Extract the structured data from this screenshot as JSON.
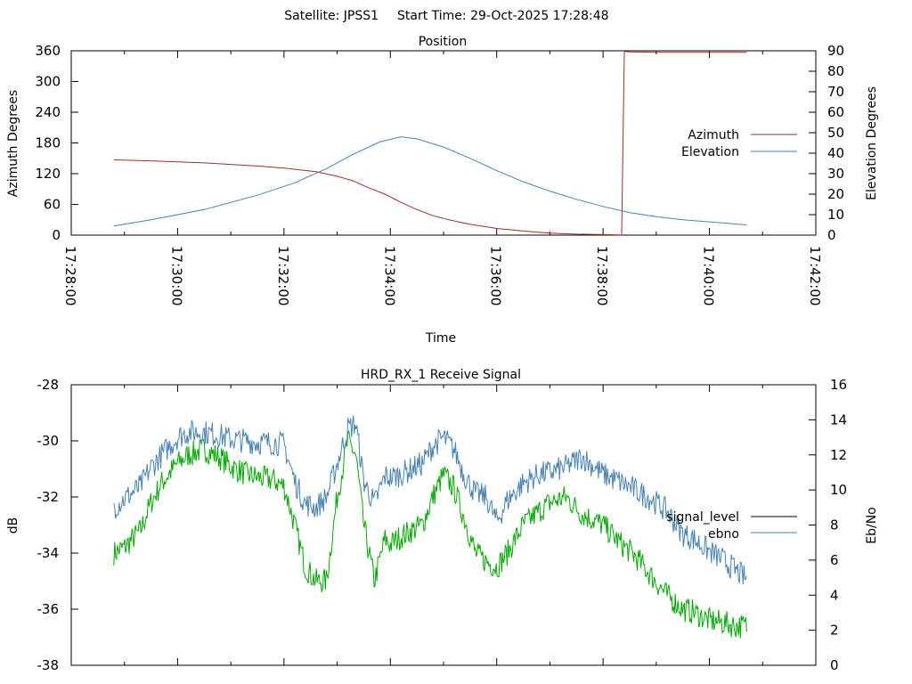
{
  "header": {
    "satellite": "Satellite: JPSS1",
    "start_time": "Start Time: 29-Oct-2025 17:28:48"
  },
  "chart_data": [
    {
      "type": "line",
      "title": "Position",
      "xlabel": "Time",
      "ylabel": "Azimuth Degrees",
      "y2label": "Elevation Degrees",
      "xlim_minutes": [
        0,
        14
      ],
      "ylim": [
        0,
        360
      ],
      "y2lim": [
        0,
        90
      ],
      "x_ticks": [
        "17:28:00",
        "17:30:00",
        "17:32:00",
        "17:34:00",
        "17:36:00",
        "17:38:00",
        "17:40:00",
        "17:42:00"
      ],
      "y_ticks": [
        "0",
        "60",
        "120",
        "180",
        "240",
        "300",
        "360"
      ],
      "y2_ticks": [
        "0",
        "10",
        "20",
        "30",
        "40",
        "50",
        "60",
        "70",
        "80",
        "90"
      ],
      "legend": [
        "Azimuth",
        "Elevation"
      ],
      "series": [
        {
          "name": "Azimuth",
          "axis": "left",
          "color": "#a52a2a",
          "x": [
            0.8,
            1.5,
            2.5,
            3.5,
            4.0,
            4.6,
            5.0,
            5.3,
            5.6,
            5.9,
            6.2,
            6.5,
            6.8,
            7.1,
            7.5,
            8.0,
            8.5,
            9.0,
            9.5,
            10.0,
            10.3,
            10.35,
            10.4,
            10.5,
            11.0,
            11.5,
            12.0,
            12.7
          ],
          "y": [
            147,
            145,
            141,
            135,
            131,
            124,
            115,
            106,
            92,
            80,
            64,
            50,
            38,
            30,
            21,
            13,
            8,
            4,
            2,
            1,
            0.5,
            0,
            359,
            358,
            357,
            357,
            357,
            357
          ]
        },
        {
          "name": "Elevation",
          "axis": "right",
          "color": "#4682b4",
          "x": [
            0.8,
            1.5,
            2.5,
            3.5,
            4.2,
            4.8,
            5.3,
            5.8,
            6.2,
            6.5,
            7.0,
            7.5,
            8.0,
            8.5,
            9.0,
            9.5,
            10.0,
            10.5,
            11.0,
            11.5,
            12.0,
            12.7
          ],
          "y": [
            4.5,
            7.5,
            12.5,
            19.5,
            25.5,
            32.5,
            39.5,
            45.5,
            48.0,
            47.0,
            43.0,
            37.5,
            31.5,
            26.0,
            21.5,
            17.5,
            14.0,
            11.0,
            9.0,
            7.5,
            6.5,
            5.0
          ]
        }
      ]
    },
    {
      "type": "line",
      "title": "HRD_RX_1 Receive Signal",
      "ylabel": "dB",
      "y2label": "Eb/No",
      "xlim_minutes": [
        0,
        14
      ],
      "ylim": [
        -38,
        -28
      ],
      "y2lim": [
        0,
        16
      ],
      "y_ticks": [
        "-28",
        "-30",
        "-32",
        "-34",
        "-36",
        "-38"
      ],
      "y2_ticks": [
        "0",
        "2",
        "4",
        "6",
        "8",
        "10",
        "12",
        "14",
        "16"
      ],
      "legend": [
        "signal_level",
        "ebno"
      ],
      "series": [
        {
          "name": "signal_level",
          "axis": "left",
          "color": "#00aa00",
          "x": [
            0.8,
            1.0,
            1.3,
            1.5,
            1.7,
            2.0,
            2.2,
            2.5,
            2.8,
            3.0,
            3.3,
            3.5,
            3.8,
            4.0,
            4.2,
            4.4,
            4.6,
            4.8,
            5.0,
            5.2,
            5.35,
            5.5,
            5.7,
            5.9,
            6.0,
            6.2,
            6.4,
            6.6,
            6.8,
            7.0,
            7.2,
            7.4,
            7.6,
            7.8,
            8.0,
            8.2,
            8.5,
            8.8,
            9.0,
            9.3,
            9.6,
            10.0,
            10.3,
            10.6,
            10.9,
            11.2,
            11.5,
            11.7,
            12.0,
            12.3,
            12.5,
            12.7
          ],
          "y": [
            -34.0,
            -33.8,
            -33.2,
            -32.2,
            -31.5,
            -30.8,
            -30.5,
            -30.3,
            -30.6,
            -30.9,
            -31.2,
            -31.3,
            -31.4,
            -31.6,
            -33.0,
            -34.5,
            -35.0,
            -35.0,
            -32.0,
            -30.0,
            -30.5,
            -33.0,
            -35.0,
            -33.5,
            -33.7,
            -33.4,
            -33.2,
            -33.0,
            -32.0,
            -31.2,
            -31.7,
            -32.8,
            -34.0,
            -34.3,
            -34.5,
            -34.0,
            -33.0,
            -32.5,
            -32.2,
            -32.0,
            -32.6,
            -33.0,
            -33.6,
            -34.1,
            -34.8,
            -35.5,
            -36.0,
            -36.1,
            -36.4,
            -36.5,
            -36.6,
            -36.6
          ]
        },
        {
          "name": "ebno",
          "axis": "right",
          "color": "#4682b4",
          "x": [
            0.8,
            1.0,
            1.3,
            1.5,
            1.7,
            2.0,
            2.2,
            2.5,
            2.8,
            3.0,
            3.3,
            3.5,
            3.8,
            4.0,
            4.2,
            4.4,
            4.6,
            4.8,
            5.0,
            5.2,
            5.35,
            5.5,
            5.7,
            5.9,
            6.0,
            6.2,
            6.4,
            6.6,
            6.8,
            7.0,
            7.2,
            7.4,
            7.6,
            7.8,
            8.0,
            8.2,
            8.5,
            8.8,
            9.0,
            9.3,
            9.6,
            10.0,
            10.3,
            10.6,
            10.9,
            11.2,
            11.5,
            11.7,
            12.0,
            12.3,
            12.5,
            12.7
          ],
          "y": [
            9.0,
            9.5,
            10.2,
            11.3,
            12.0,
            13.0,
            13.3,
            13.3,
            13.1,
            12.9,
            12.8,
            12.7,
            12.7,
            12.6,
            10.5,
            9.2,
            9.0,
            9.6,
            11.5,
            13.5,
            13.8,
            10.5,
            9.2,
            10.8,
            10.7,
            10.9,
            11.2,
            11.5,
            12.5,
            13.0,
            12.3,
            10.8,
            9.8,
            9.6,
            8.2,
            9.4,
            10.4,
            10.9,
            11.0,
            11.3,
            11.9,
            10.9,
            10.5,
            10.0,
            9.5,
            8.8,
            7.5,
            7.2,
            6.5,
            5.9,
            5.4,
            4.9
          ]
        }
      ]
    }
  ]
}
